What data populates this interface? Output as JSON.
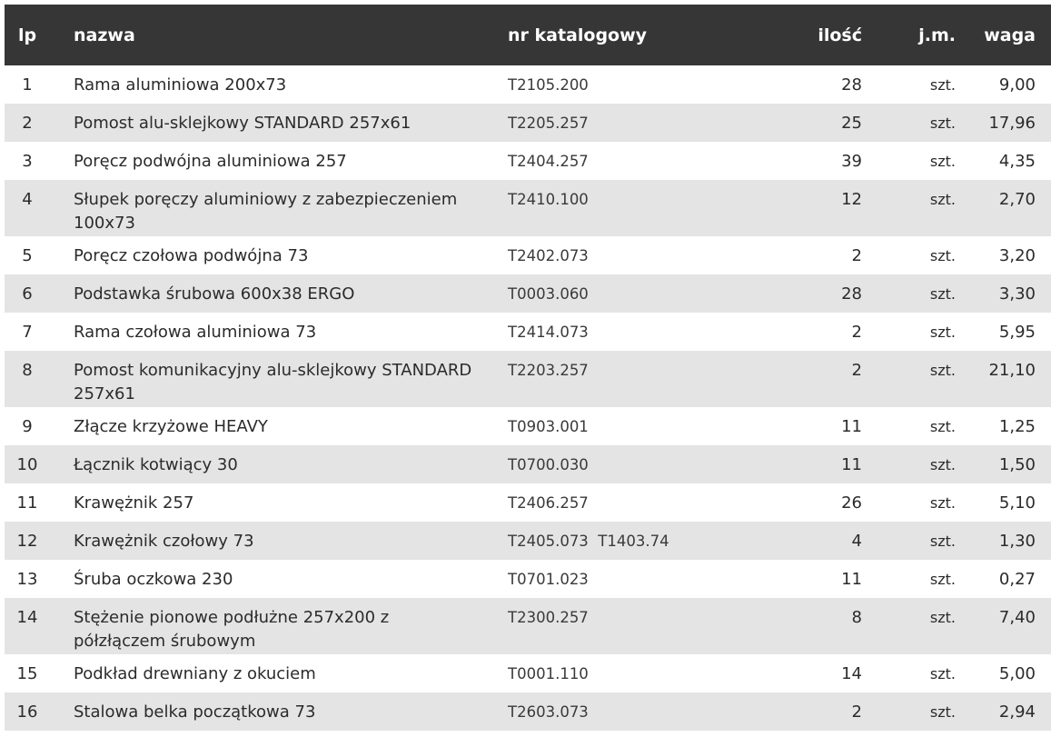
{
  "headers": {
    "lp": "lp",
    "name": "nazwa",
    "catalog": "nr katalogowy",
    "qty": "ilość",
    "unit": "j.m.",
    "weight": "waga"
  },
  "rows": [
    {
      "lp": "1",
      "name": "Rama aluminiowa 200x73",
      "catalog": "T2105.200",
      "qty": "28",
      "unit": "szt.",
      "weight": "9,00"
    },
    {
      "lp": "2",
      "name": "Pomost alu-sklejkowy STANDARD 257x61",
      "catalog": "T2205.257",
      "qty": "25",
      "unit": "szt.",
      "weight": "17,96"
    },
    {
      "lp": "3",
      "name": "Poręcz podwójna aluminiowa 257",
      "catalog": "T2404.257",
      "qty": "39",
      "unit": "szt.",
      "weight": "4,35"
    },
    {
      "lp": "4",
      "name": "Słupek poręczy aluminiowy z zabezpieczeniem 100x73",
      "catalog": "T2410.100",
      "qty": "12",
      "unit": "szt.",
      "weight": "2,70"
    },
    {
      "lp": "5",
      "name": "Poręcz czołowa podwójna 73",
      "catalog": "T2402.073",
      "qty": "2",
      "unit": "szt.",
      "weight": "3,20"
    },
    {
      "lp": "6",
      "name": "Podstawka śrubowa 600x38 ERGO",
      "catalog": "T0003.060",
      "qty": "28",
      "unit": "szt.",
      "weight": "3,30"
    },
    {
      "lp": "7",
      "name": "Rama czołowa aluminiowa 73",
      "catalog": "T2414.073",
      "qty": "2",
      "unit": "szt.",
      "weight": "5,95"
    },
    {
      "lp": "8",
      "name": "Pomost komunikacyjny alu-sklejkowy STANDARD 257x61",
      "catalog": "T2203.257",
      "qty": "2",
      "unit": "szt.",
      "weight": "21,10"
    },
    {
      "lp": "9",
      "name": "Złącze krzyżowe HEAVY",
      "catalog": "T0903.001",
      "qty": "11",
      "unit": "szt.",
      "weight": "1,25"
    },
    {
      "lp": "10",
      "name": "Łącznik kotwiący 30",
      "catalog": "T0700.030",
      "qty": "11",
      "unit": "szt.",
      "weight": "1,50"
    },
    {
      "lp": "11",
      "name": "Krawężnik 257",
      "catalog": "T2406.257",
      "qty": "26",
      "unit": "szt.",
      "weight": "5,10"
    },
    {
      "lp": "12",
      "name": "Krawężnik czołowy 73",
      "catalog": "T2405.073  T1403.74",
      "qty": "4",
      "unit": "szt.",
      "weight": "1,30"
    },
    {
      "lp": "13",
      "name": "Śruba oczkowa 230",
      "catalog": "T0701.023",
      "qty": "11",
      "unit": "szt.",
      "weight": "0,27"
    },
    {
      "lp": "14",
      "name": "Stężenie pionowe podłużne 257x200 z półzłączem śrubowym",
      "catalog": "T2300.257",
      "qty": "8",
      "unit": "szt.",
      "weight": "7,40"
    },
    {
      "lp": "15",
      "name": "Podkład drewniany z okuciem",
      "catalog": "T0001.110",
      "qty": "14",
      "unit": "szt.",
      "weight": "5,00"
    },
    {
      "lp": "16",
      "name": "Stalowa belka początkowa 73",
      "catalog": "T2603.073",
      "qty": "2",
      "unit": "szt.",
      "weight": "2,94"
    }
  ]
}
